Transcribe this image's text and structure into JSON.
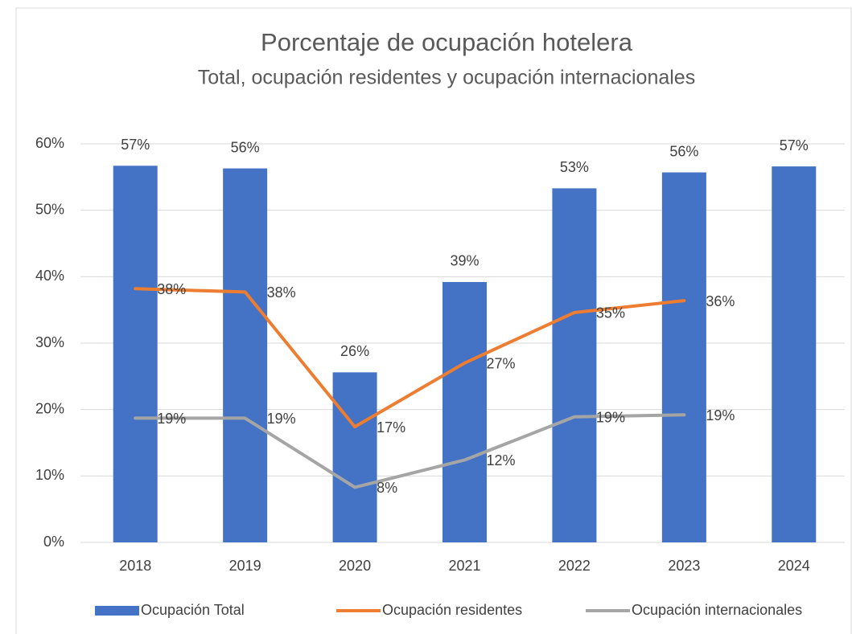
{
  "chart_data": {
    "type": "bar_line",
    "title": "Porcentaje de ocupación hotelera",
    "subtitle": "Total, ocupación residentes y ocupación internacionales",
    "categories": [
      "2018",
      "2019",
      "2020",
      "2021",
      "2022",
      "2023",
      "2024"
    ],
    "series": [
      {
        "name": "Ocupación Total",
        "type": "bar",
        "color": "#4472c4",
        "values": [
          56.7,
          56.3,
          25.6,
          39.2,
          53.3,
          55.7,
          56.6
        ],
        "value_labels": [
          "57%",
          "56%",
          "26%",
          "39%",
          "53%",
          "56%",
          "57%"
        ]
      },
      {
        "name": "Ocupación residentes",
        "type": "line",
        "color": "#ed7d31",
        "values": [
          38.2,
          37.7,
          17.4,
          27.0,
          34.6,
          36.4,
          null
        ],
        "value_labels": [
          "38%",
          "38%",
          "17%",
          "27%",
          "35%",
          "36%",
          null
        ]
      },
      {
        "name": "Ocupación internacionales",
        "type": "line",
        "color": "#a5a5a5",
        "values": [
          18.7,
          18.7,
          8.3,
          12.4,
          18.9,
          19.2,
          null
        ],
        "value_labels": [
          "19%",
          "19%",
          "8%",
          "12%",
          "19%",
          "19%",
          null
        ]
      }
    ],
    "ylim": [
      0,
      60
    ],
    "yticks": [
      {
        "value": 0,
        "label": "0%"
      },
      {
        "value": 10,
        "label": "10%"
      },
      {
        "value": 20,
        "label": "20%"
      },
      {
        "value": 30,
        "label": "30%"
      },
      {
        "value": 40,
        "label": "40%"
      },
      {
        "value": 50,
        "label": "50%"
      },
      {
        "value": 60,
        "label": "60%"
      }
    ],
    "grid": true,
    "legend": "bottom"
  }
}
